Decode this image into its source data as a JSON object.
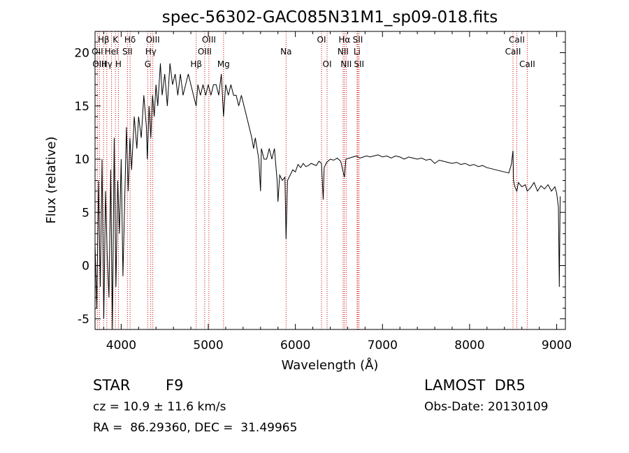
{
  "chart_data": {
    "type": "line",
    "title": "spec-56302-GAC085N31M1_sp09-018.fits",
    "xlabel": "Wavelength (Å)",
    "ylabel": "Flux (relative)",
    "xlim": [
      3700,
      9100
    ],
    "ylim": [
      -6,
      22
    ],
    "xticks": [
      4000,
      5000,
      6000,
      7000,
      8000,
      9000
    ],
    "yticks": [
      -5,
      0,
      5,
      10,
      15,
      20
    ],
    "grid": false,
    "line_color": "#000000",
    "marker_color": "#cc0000",
    "spectrum": [
      [
        3700,
        2
      ],
      [
        3720,
        -4
      ],
      [
        3740,
        8
      ],
      [
        3760,
        -2
      ],
      [
        3780,
        10
      ],
      [
        3800,
        -5
      ],
      [
        3820,
        7
      ],
      [
        3840,
        1
      ],
      [
        3860,
        -3
      ],
      [
        3880,
        9
      ],
      [
        3900,
        -6
      ],
      [
        3920,
        12
      ],
      [
        3940,
        -2
      ],
      [
        3960,
        8
      ],
      [
        3980,
        3
      ],
      [
        4000,
        10
      ],
      [
        4020,
        -1
      ],
      [
        4040,
        6
      ],
      [
        4060,
        13
      ],
      [
        4080,
        7
      ],
      [
        4100,
        12
      ],
      [
        4120,
        9
      ],
      [
        4150,
        14
      ],
      [
        4180,
        11
      ],
      [
        4200,
        14
      ],
      [
        4230,
        12
      ],
      [
        4260,
        16
      ],
      [
        4290,
        13
      ],
      [
        4300,
        10
      ],
      [
        4320,
        15
      ],
      [
        4340,
        12
      ],
      [
        4360,
        16
      ],
      [
        4380,
        14
      ],
      [
        4400,
        17
      ],
      [
        4420,
        15
      ],
      [
        4450,
        19
      ],
      [
        4470,
        16
      ],
      [
        4500,
        18
      ],
      [
        4530,
        15
      ],
      [
        4560,
        19
      ],
      [
        4590,
        17
      ],
      [
        4620,
        18
      ],
      [
        4650,
        16
      ],
      [
        4680,
        18
      ],
      [
        4710,
        16
      ],
      [
        4740,
        17
      ],
      [
        4770,
        18
      ],
      [
        4800,
        17
      ],
      [
        4830,
        16
      ],
      [
        4861,
        15
      ],
      [
        4880,
        17
      ],
      [
        4910,
        16
      ],
      [
        4940,
        17
      ],
      [
        4970,
        16
      ],
      [
        5000,
        17
      ],
      [
        5030,
        16
      ],
      [
        5060,
        17
      ],
      [
        5090,
        17
      ],
      [
        5120,
        16
      ],
      [
        5150,
        18
      ],
      [
        5175,
        14
      ],
      [
        5200,
        17
      ],
      [
        5230,
        16
      ],
      [
        5260,
        17
      ],
      [
        5290,
        16
      ],
      [
        5320,
        16
      ],
      [
        5350,
        15
      ],
      [
        5380,
        16
      ],
      [
        5410,
        15
      ],
      [
        5440,
        14
      ],
      [
        5470,
        13
      ],
      [
        5500,
        12
      ],
      [
        5520,
        11
      ],
      [
        5540,
        12
      ],
      [
        5560,
        11
      ],
      [
        5580,
        10
      ],
      [
        5600,
        7
      ],
      [
        5610,
        11
      ],
      [
        5640,
        10
      ],
      [
        5670,
        10
      ],
      [
        5700,
        11
      ],
      [
        5730,
        10
      ],
      [
        5760,
        11
      ],
      [
        5790,
        8
      ],
      [
        5800,
        6
      ],
      [
        5820,
        8.5
      ],
      [
        5850,
        8
      ],
      [
        5880,
        8.3
      ],
      [
        5893,
        2.5
      ],
      [
        5910,
        8
      ],
      [
        5940,
        8.5
      ],
      [
        5970,
        9
      ],
      [
        6000,
        8.8
      ],
      [
        6030,
        9.5
      ],
      [
        6060,
        9.2
      ],
      [
        6090,
        9.6
      ],
      [
        6120,
        9.3
      ],
      [
        6150,
        9.4
      ],
      [
        6180,
        9.6
      ],
      [
        6210,
        9.5
      ],
      [
        6240,
        9.4
      ],
      [
        6270,
        9.8
      ],
      [
        6300,
        9.6
      ],
      [
        6320,
        6.2
      ],
      [
        6330,
        9.2
      ],
      [
        6360,
        9.7
      ],
      [
        6400,
        10
      ],
      [
        6440,
        9.9
      ],
      [
        6480,
        10.1
      ],
      [
        6520,
        9.8
      ],
      [
        6563,
        8.3
      ],
      [
        6580,
        10.0
      ],
      [
        6620,
        10.1
      ],
      [
        6660,
        10.2
      ],
      [
        6700,
        10.3
      ],
      [
        6740,
        10.1
      ],
      [
        6780,
        10.2
      ],
      [
        6820,
        10.3
      ],
      [
        6860,
        10.2
      ],
      [
        6900,
        10.3
      ],
      [
        6950,
        10.4
      ],
      [
        7000,
        10.2
      ],
      [
        7050,
        10.3
      ],
      [
        7100,
        10.1
      ],
      [
        7150,
        10.3
      ],
      [
        7200,
        10.2
      ],
      [
        7250,
        10.0
      ],
      [
        7300,
        10.2
      ],
      [
        7350,
        10.1
      ],
      [
        7400,
        10.0
      ],
      [
        7450,
        10.1
      ],
      [
        7500,
        9.9
      ],
      [
        7550,
        10.0
      ],
      [
        7600,
        9.6
      ],
      [
        7650,
        9.9
      ],
      [
        7700,
        9.8
      ],
      [
        7750,
        9.7
      ],
      [
        7800,
        9.6
      ],
      [
        7850,
        9.7
      ],
      [
        7900,
        9.5
      ],
      [
        7950,
        9.6
      ],
      [
        8000,
        9.4
      ],
      [
        8050,
        9.5
      ],
      [
        8100,
        9.3
      ],
      [
        8150,
        9.4
      ],
      [
        8200,
        9.2
      ],
      [
        8250,
        9.1
      ],
      [
        8300,
        9.0
      ],
      [
        8350,
        8.9
      ],
      [
        8400,
        8.8
      ],
      [
        8450,
        8.7
      ],
      [
        8480,
        9.5
      ],
      [
        8498,
        10.8
      ],
      [
        8505,
        8.0
      ],
      [
        8520,
        7.4
      ],
      [
        8542,
        7.0
      ],
      [
        8560,
        7.8
      ],
      [
        8600,
        7.4
      ],
      [
        8640,
        7.6
      ],
      [
        8662,
        7.0
      ],
      [
        8700,
        7.3
      ],
      [
        8740,
        7.8
      ],
      [
        8780,
        7.0
      ],
      [
        8820,
        7.5
      ],
      [
        8860,
        7.2
      ],
      [
        8900,
        7.6
      ],
      [
        8940,
        7.0
      ],
      [
        8980,
        7.4
      ],
      [
        9000,
        6.8
      ],
      [
        9020,
        5.5
      ],
      [
        9030,
        -2
      ],
      [
        9040,
        6.5
      ]
    ],
    "lines": [
      {
        "label": "Hβ",
        "x": 3798,
        "row": 1
      },
      {
        "label": "K",
        "x": 3934,
        "row": 1
      },
      {
        "label": "Hδ",
        "x": 4102,
        "row": 1
      },
      {
        "label": "OIII",
        "x": 4363,
        "row": 1
      },
      {
        "label": "OIII",
        "x": 5007,
        "row": 1
      },
      {
        "label": "OI",
        "x": 6300,
        "row": 1
      },
      {
        "label": "Hα",
        "x": 6563,
        "row": 1
      },
      {
        "label": "SII",
        "x": 6717,
        "row": 1
      },
      {
        "label": "CaII",
        "x": 8542,
        "row": 1
      },
      {
        "label": "OII",
        "x": 3727,
        "row": 2
      },
      {
        "label": "HeI",
        "x": 3889,
        "row": 2
      },
      {
        "label": "SII",
        "x": 4072,
        "row": 2
      },
      {
        "label": "Hγ",
        "x": 4340,
        "row": 2
      },
      {
        "label": "OIII",
        "x": 4959,
        "row": 2
      },
      {
        "label": "NII",
        "x": 6548,
        "row": 2
      },
      {
        "label": "Li",
        "x": 6708,
        "row": 2
      },
      {
        "label": "CaII",
        "x": 8498,
        "row": 2
      },
      {
        "label": "OIII",
        "x": 3750,
        "row": 3
      },
      {
        "label": "Hγ",
        "x": 3835,
        "row": 3
      },
      {
        "label": "H",
        "x": 3968,
        "row": 3
      },
      {
        "label": "G",
        "x": 4305,
        "row": 3
      },
      {
        "label": "Hβ",
        "x": 4861,
        "row": 3
      },
      {
        "label": "Mg",
        "x": 5175,
        "row": 3
      },
      {
        "label": "Na",
        "x": 5893,
        "row": 2
      },
      {
        "label": "OI",
        "x": 6364,
        "row": 3
      },
      {
        "label": "NII",
        "x": 6583,
        "row": 3
      },
      {
        "label": "SII",
        "x": 6731,
        "row": 3
      },
      {
        "label": "CaII",
        "x": 8662,
        "row": 3
      }
    ]
  },
  "footer": {
    "object": "STAR",
    "subclass": "F9",
    "survey": "LAMOST  DR5",
    "cz": "cz = 10.9 ± 11.6 km/s",
    "obs_date": "Obs-Date: 20130109",
    "coords": "RA =  86.29360, DEC =  31.49965"
  }
}
